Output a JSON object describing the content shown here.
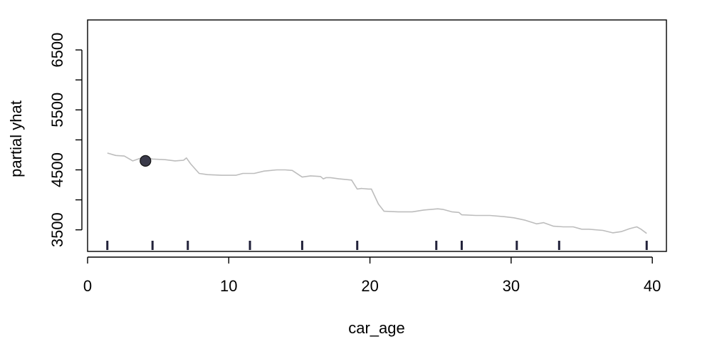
{
  "chart_data": {
    "type": "line",
    "xlabel": "car_age",
    "ylabel": "partial yhat",
    "xlim": [
      0,
      41
    ],
    "ylim": [
      3140,
      7000
    ],
    "x_ticks": [
      0,
      10,
      20,
      30,
      40
    ],
    "x_tick_labels": [
      "0",
      "10",
      "20",
      "30",
      "40"
    ],
    "y_ticks": [
      3500,
      4500,
      5500,
      6500
    ],
    "y_tick_labels": [
      "3500",
      "4500",
      "5500",
      "6500"
    ],
    "grid": false,
    "legend": "none",
    "series": [
      {
        "color": "#bdbdbd",
        "x": [
          1.4,
          2.0,
          2.6,
          3.2,
          3.8,
          4.2,
          4.6,
          5.5,
          6.2,
          6.8,
          7.0,
          7.3,
          7.9,
          8.5,
          9.5,
          10.5,
          11.0,
          11.8,
          12.5,
          13.4,
          14.0,
          14.5,
          15.2,
          15.8,
          16.5,
          16.7,
          16.9,
          17.2,
          17.8,
          18.7,
          19.1,
          19.4,
          19.9,
          20.1,
          20.6,
          21.0,
          22.0,
          23.0,
          23.8,
          24.8,
          25.2,
          25.8,
          26.3,
          26.5,
          27.5,
          28.5,
          29.5,
          30.2,
          31.0,
          31.8,
          32.3,
          33.0,
          33.7,
          34.4,
          35.0,
          35.5,
          36.5,
          37.2,
          37.8,
          38.4,
          38.9,
          39.2,
          39.6
        ],
        "values": [
          4780,
          4740,
          4730,
          4650,
          4700,
          4700,
          4680,
          4670,
          4650,
          4660,
          4700,
          4600,
          4440,
          4420,
          4410,
          4410,
          4440,
          4440,
          4480,
          4500,
          4500,
          4490,
          4380,
          4400,
          4390,
          4350,
          4370,
          4370,
          4350,
          4330,
          4180,
          4190,
          4180,
          4180,
          3930,
          3810,
          3800,
          3800,
          3830,
          3850,
          3840,
          3800,
          3790,
          3750,
          3740,
          3740,
          3720,
          3700,
          3660,
          3600,
          3620,
          3560,
          3550,
          3550,
          3510,
          3510,
          3490,
          3450,
          3470,
          3520,
          3550,
          3510,
          3440
        ]
      }
    ],
    "highlight_point": {
      "x": 4.1,
      "y": 4650,
      "color": "#3a3a4a"
    },
    "rug": [
      1.4,
      4.6,
      7.1,
      11.5,
      15.2,
      19.1,
      24.7,
      26.5,
      30.4,
      33.4,
      39.6
    ],
    "rug_color": "#22223a"
  }
}
